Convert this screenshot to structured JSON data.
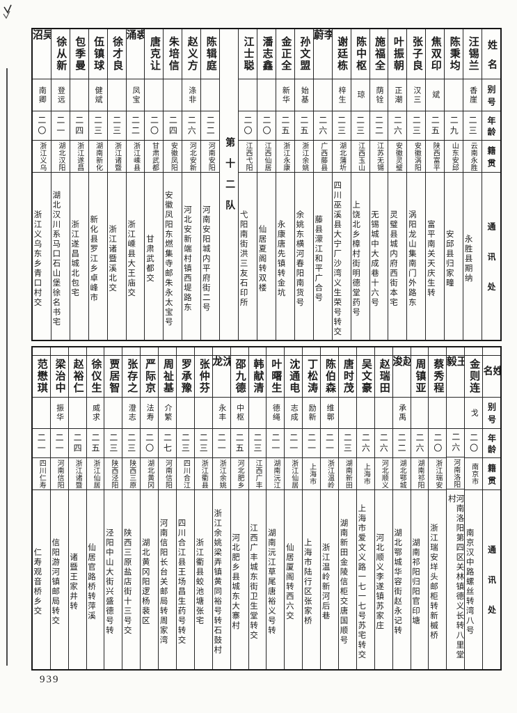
{
  "page": {
    "number": "939"
  },
  "headers": {
    "name": "姓名",
    "alias": "别号",
    "age": "年龄",
    "native": "籍贯",
    "address": "通讯处"
  },
  "top_table": {
    "squad_divider_label": "第十二队",
    "right_entries": [
      {
        "name": "汪锡兰",
        "alias": "香崖",
        "age": "二三",
        "native": "云南永胜",
        "address": "永胜县期纳"
      },
      {
        "name": "陈秉均",
        "alias": "",
        "age": "二九",
        "native": "山东安邱",
        "address": "安邱县归家疃"
      },
      {
        "name": "焦双印",
        "alias": "斌",
        "age": "二五",
        "native": "陕西富平",
        "address": "富平南关天庆生转"
      },
      {
        "name": "张子良",
        "alias": "汉三",
        "age": "二三",
        "native": "安徽涡阳",
        "address": "涡阳龙山集南门外路东"
      },
      {
        "name": "叶振朝",
        "alias": "正潮",
        "age": "二六",
        "native": "安徽灵璧",
        "address": "灵璧县城内府西街本宅"
      },
      {
        "name": "施福全",
        "alias": "荫铨",
        "age": "二二",
        "native": "江苏无锡",
        "address": "无锡城中大成巷十六号"
      },
      {
        "name": "陈中枢",
        "alias": "琼",
        "age": "二三",
        "native": "江西玉山",
        "address": "上饶北乡樟村街明德堂药号"
      },
      {
        "name": "谢廷栋",
        "alias": "梓生",
        "age": "二三",
        "native": "湖北蒲圻",
        "address": "四川巫溪县大宁厂沙湾义生荣号转交"
      },
      {
        "name": "李蔚",
        "alias": "",
        "age": "二六",
        "native": "广西藤县",
        "address": "藤县濛江和平广合号"
      },
      {
        "name": "孙文盟",
        "alias": "始基",
        "age": "二五",
        "native": "浙江余姚",
        "address": "余姚东横河春阳南货号"
      },
      {
        "name": "金正全",
        "alias": "新华",
        "age": "二五",
        "native": "浙江永康",
        "address": "永康唐先镇转金坑"
      },
      {
        "name": "潘志鑫",
        "alias": "",
        "age": "二〇",
        "native": "江西仙居",
        "address": "仙居夏阁转双楼"
      },
      {
        "name": "江士聪",
        "alias": "",
        "age": "二〇",
        "native": "江西弋阳",
        "address": "弋阳南街洪三友石印所"
      }
    ],
    "left_entries": [
      {
        "name": "陈辑庭",
        "alias": "",
        "age": "二二",
        "native": "河南安阳",
        "address": "河南安阳城内平府街二号"
      },
      {
        "name": "赵义方",
        "alias": "涤非",
        "age": "二六",
        "native": "河北安新",
        "address": "河北安新端村镇西堤路东"
      },
      {
        "name": "朱培信",
        "alias": "",
        "age": "二四",
        "native": "安徽凤阳",
        "address": "安徽凤阳东燃集寺邮朱永太宝号"
      },
      {
        "name": "唐克让",
        "alias": "",
        "age": "二〇",
        "native": "甘肃武都",
        "address": "甘肃武都交"
      },
      {
        "name": "裘涌",
        "alias": "凤宝",
        "age": "二二",
        "native": "浙江嵊县",
        "address": "浙江嵊县大王庙交"
      },
      {
        "name": "徐才良",
        "alias": "",
        "age": "二三",
        "native": "浙江诸暨",
        "address": "浙江诸暨溪北交"
      },
      {
        "name": "伍镇球",
        "alias": "健斌",
        "age": "二三",
        "native": "湖南新化",
        "address": "新化县罗江乡卓峰市"
      },
      {
        "name": "包季曼",
        "alias": "",
        "age": "二四",
        "native": "浙江遂昌",
        "address": "浙江遂昌城北包宅"
      },
      {
        "name": "徐从新",
        "alias": "登远",
        "age": "二一",
        "native": "湖北汉阳",
        "address": "湖北汉川系马口石山堡徐名书宅"
      },
      {
        "name": "吴沼",
        "alias": "南卿",
        "age": "二〇",
        "native": "浙江义乌",
        "address": "浙江义乌东乡青口村交"
      }
    ]
  },
  "bottom_table": {
    "entries": [
      {
        "name": "金则连",
        "alias": "戈",
        "age": "二〇",
        "native": "南京市",
        "address": "南京汉中路螺丝转湾八号"
      },
      {
        "name": "王毅",
        "alias": "",
        "age": "二六",
        "native": "河南洛阳",
        "address": "河南洛阳第四区关林镇德义长转八里堂村"
      },
      {
        "name": "蔡秀程",
        "alias": "",
        "age": "二〇",
        "native": "浙江瑞安",
        "address": "浙江瑞安垟头邮柜转新槭桥"
      },
      {
        "name": "周镇亚",
        "alias": "",
        "age": "二六",
        "native": "湖南祁阳",
        "address": "湖南祁阳归阳官印塘"
      },
      {
        "name": "赵浚",
        "alias": "承禹",
        "age": "二二",
        "native": "湖北鄂城",
        "address": "湖北鄂城华容街赵永记转"
      },
      {
        "name": "赵瑞田",
        "alias": "",
        "age": "二六",
        "native": "河北顺义",
        "address": "河北顺义李遂镇苏家庄"
      },
      {
        "name": "吴文豪",
        "alias": "",
        "age": "二六",
        "native": "上海市",
        "address": "上海市爱文义路一七一七号苏宅转交"
      },
      {
        "name": "唐时茂",
        "alias": "",
        "age": "二三",
        "native": "湖南新田",
        "address": "湖南新田金陵信柜交唐国顺号"
      },
      {
        "name": "陈伯森",
        "alias": "维鄣",
        "age": "二一",
        "native": "浙江温岭",
        "address": "浙江温岭新河后巷"
      },
      {
        "name": "丁松涛",
        "alias": "励新",
        "age": "二一",
        "native": "上海市",
        "address": "上海市陆行区张家桥"
      },
      {
        "name": "沈通电",
        "alias": "志成",
        "age": "二一",
        "native": "浙江仙居",
        "address": "仙居厦阁转西六交"
      },
      {
        "name": "叶曙生",
        "alias": "德绳",
        "age": "二一",
        "native": "湖南沅江",
        "address": "湖南沅江草尾唐裕义号转"
      },
      {
        "name": "韩献清",
        "alias": "",
        "age": "二三",
        "native": "江西广丰",
        "address": "江西广丰城东街卫生堂转交"
      },
      {
        "name": "邵九德",
        "alias": "中枢",
        "age": "二五",
        "native": "河北肥乡",
        "address": "河北肥乡县城东大寨村"
      },
      {
        "name": "沈龙",
        "alias": "永丰",
        "age": "二一",
        "native": "浙江余姚",
        "address": "浙江余姚梁弄镇黄同裕号转石鼓村"
      },
      {
        "name": "张仲芬",
        "alias": "",
        "age": "二三",
        "native": "浙江衢县",
        "address": "浙江衢县蛟池塘张宅"
      },
      {
        "name": "罗承豫",
        "alias": "",
        "age": "二三",
        "native": "四川合江",
        "address": "四川合江县王场昌生药号转交"
      },
      {
        "name": "周祉基",
        "alias": "介繁",
        "age": "二七",
        "native": "河南信阳",
        "address": "河南信阳长台关邮局转周家湾"
      },
      {
        "name": "严际京",
        "alias": "法寿",
        "age": "二〇",
        "native": "湖北黄冈",
        "address": "湖北黄冈阳逻杨裴区"
      },
      {
        "name": "张存之",
        "alias": "澄志",
        "age": "二三",
        "native": "陕西三原",
        "address": "陕西三原盐店街十三号交"
      },
      {
        "name": "贾居智",
        "alias": "",
        "age": "二三",
        "native": "陕西泾阳",
        "address": "泾阳中山大街兴盛德号转"
      },
      {
        "name": "徐仪生",
        "alias": "威求",
        "age": "二五",
        "native": "浙江仙居",
        "address": "仙居官路桥转萍溪"
      },
      {
        "name": "赵裕仁",
        "alias": "",
        "age": "二四",
        "native": "浙江诸暨",
        "address": "诸暨王家井转"
      },
      {
        "name": "梁治中",
        "alias": "振华",
        "age": "二一",
        "native": "河南信阳",
        "address": "信阳游河镇邮局转交"
      },
      {
        "name": "范懋琪",
        "alias": "",
        "age": "二一",
        "native": "四川仁寿",
        "address": "仁寿观音桥乡交"
      }
    ]
  }
}
